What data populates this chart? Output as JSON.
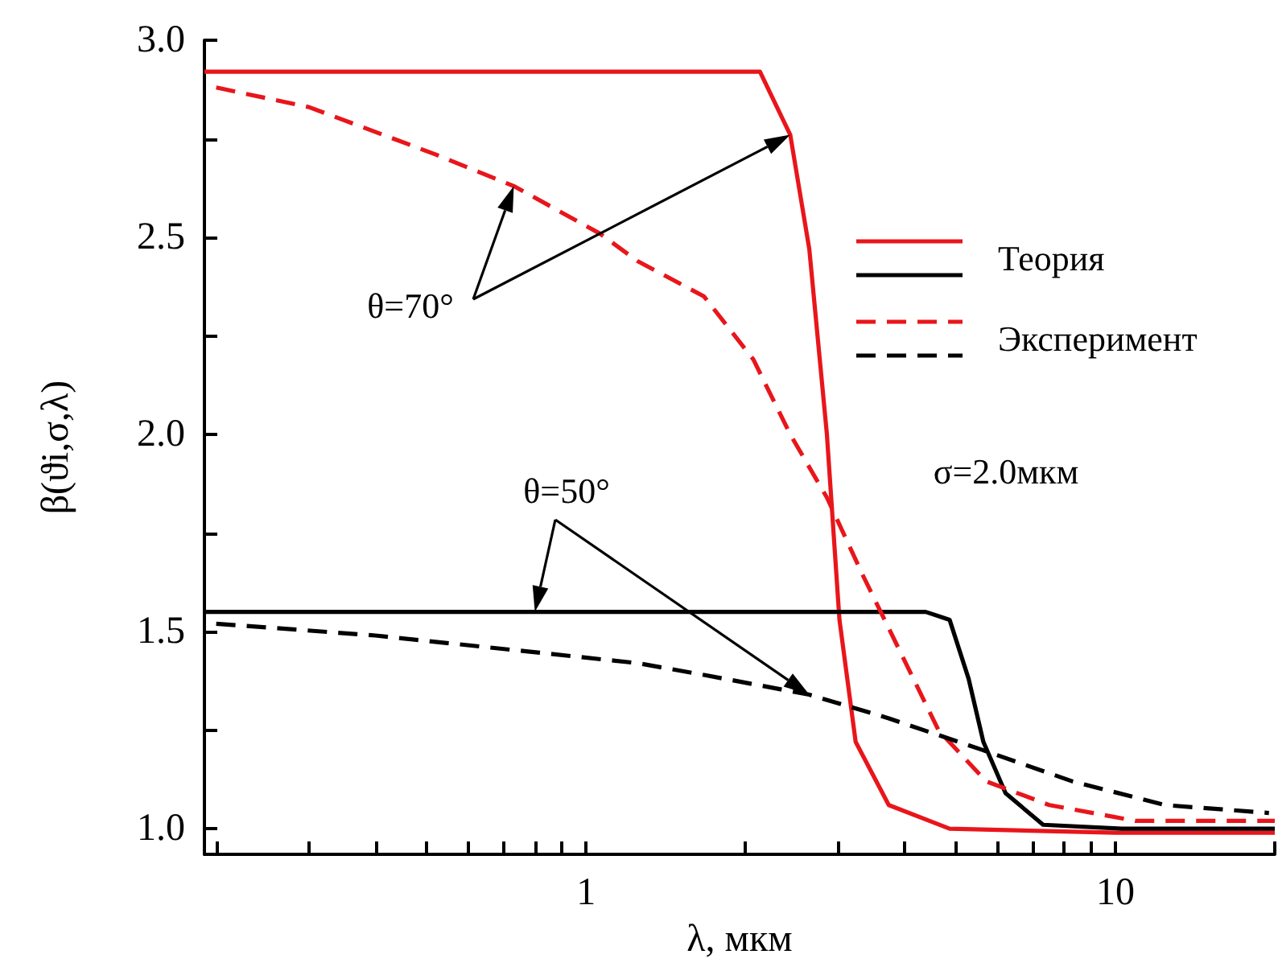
{
  "chart_data": {
    "type": "line",
    "xlabel": "λ, мкм",
    "ylabel": "β(ϑi,σ,λ)",
    "log": "x",
    "grid": false,
    "legend": "right",
    "marker": "none",
    "xlim": [
      0.19,
      20
    ],
    "ylim": [
      0.935,
      3.0
    ],
    "xticks": [
      {
        "value": 0.2,
        "label": null
      },
      {
        "value": 0.3,
        "label": null
      },
      {
        "value": 0.4,
        "label": null
      },
      {
        "value": 0.5,
        "label": null
      },
      {
        "value": 0.6,
        "label": null
      },
      {
        "value": 0.7,
        "label": null
      },
      {
        "value": 0.8,
        "label": null
      },
      {
        "value": 0.9,
        "label": null
      },
      1,
      {
        "value": 2,
        "label": null
      },
      {
        "value": 3,
        "label": null
      },
      {
        "value": 4,
        "label": null
      },
      {
        "value": 5,
        "label": null
      },
      {
        "value": 6,
        "label": null
      },
      {
        "value": 7,
        "label": null
      },
      {
        "value": 8,
        "label": null
      },
      {
        "value": 9,
        "label": null
      },
      10,
      {
        "value": 20,
        "label": null
      }
    ],
    "yticks": [
      {
        "value": 1,
        "label": "1.0"
      },
      {
        "value": 1.25,
        "label": null
      },
      {
        "value": 1.5,
        "label": "1.5"
      },
      {
        "value": 1.75,
        "label": null
      },
      {
        "value": 2,
        "label": "2.0"
      },
      {
        "value": 2.25,
        "label": null
      },
      {
        "value": 2.5,
        "label": "2.5"
      },
      {
        "value": 2.75,
        "label": null
      },
      {
        "value": 3,
        "label": "3.0"
      }
    ],
    "annotations": [
      "θ=70°",
      "θ=50°",
      "σ=2.0мкм"
    ],
    "series": [
      {
        "name": "Теория",
        "color": "#e8161b",
        "line_style": "solid",
        "x": [
          0.19,
          1,
          2.13,
          2.43,
          2.64,
          2.85,
          3.01,
          3.23,
          3.73,
          4.86,
          10,
          20
        ],
        "values": [
          2.92,
          2.92,
          2.92,
          2.76,
          2.47,
          2.0,
          1.53,
          1.22,
          1.06,
          1.0,
          0.99,
          0.99
        ]
      },
      {
        "color": "#000000",
        "line_style": "solid",
        "x": [
          0.19,
          0.8,
          4.38,
          4.86,
          5.28,
          5.63,
          6.2,
          7.3,
          10.3,
          20
        ],
        "values": [
          1.55,
          1.55,
          1.55,
          1.53,
          1.38,
          1.22,
          1.09,
          1.01,
          1.0,
          1.0
        ]
      },
      {
        "name": "Эксперимент",
        "color": "#e8161b",
        "line_style": "dashed",
        "x": [
          0.2,
          0.3,
          0.52,
          0.73,
          1.06,
          1.25,
          1.67,
          2.07,
          2.43,
          2.85,
          3.34,
          3.95,
          4.63,
          5.7,
          7.5,
          10.9,
          20
        ],
        "values": [
          2.88,
          2.83,
          2.71,
          2.63,
          2.51,
          2.44,
          2.35,
          2.19,
          2.0,
          1.84,
          1.64,
          1.44,
          1.25,
          1.12,
          1.06,
          1.02,
          1.02
        ]
      },
      {
        "color": "#000000",
        "line_style": "dashed",
        "x": [
          0.2,
          0.4,
          0.77,
          1.25,
          1.67,
          2.64,
          3.73,
          5.6,
          8.3,
          12.4,
          19.5
        ],
        "values": [
          1.52,
          1.49,
          1.45,
          1.42,
          1.39,
          1.34,
          1.28,
          1.2,
          1.12,
          1.06,
          1.04
        ]
      }
    ]
  }
}
